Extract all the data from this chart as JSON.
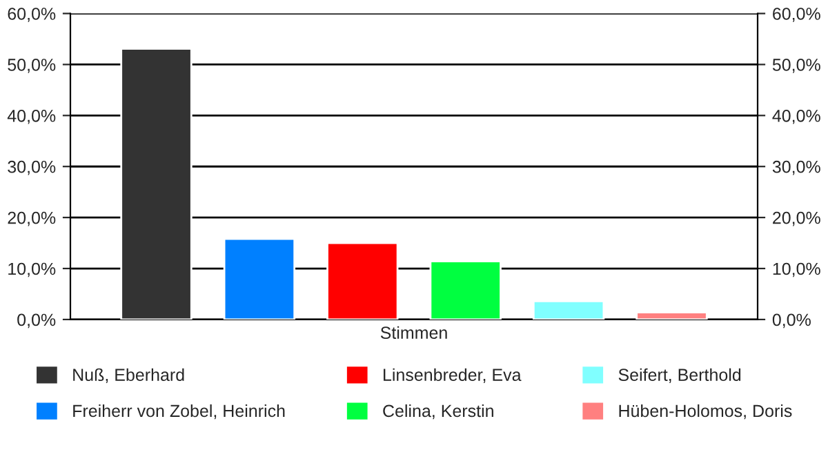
{
  "chart_data": {
    "type": "bar",
    "categories": [
      "Stimmen"
    ],
    "series": [
      {
        "name": "Nuß, Eberhard",
        "color": "#333333",
        "values": [
          53.1
        ]
      },
      {
        "name": "Freiherr von Zobel, Heinrich",
        "color": "#0080ff",
        "values": [
          15.8
        ]
      },
      {
        "name": "Linsenbreder, Eva",
        "color": "#ff0000",
        "values": [
          15.0
        ]
      },
      {
        "name": "Celina, Kerstin",
        "color": "#00ff40",
        "values": [
          11.4
        ]
      },
      {
        "name": "Seifert, Berthold",
        "color": "#80ffff",
        "values": [
          3.6
        ]
      },
      {
        "name": "Hüben-Holomos, Doris",
        "color": "#ff8080",
        "values": [
          1.4
        ]
      }
    ],
    "ylim": [
      0,
      60
    ],
    "yticks": [
      {
        "value": 0,
        "label": "0,0%"
      },
      {
        "value": 10,
        "label": "10,0%"
      },
      {
        "value": 20,
        "label": "20,0%"
      },
      {
        "value": 30,
        "label": "30,0%"
      },
      {
        "value": 40,
        "label": "40,0%"
      },
      {
        "value": 50,
        "label": "50,0%"
      },
      {
        "value": 60,
        "label": "60,0%"
      }
    ],
    "grid": "y",
    "legend": "bottom"
  }
}
